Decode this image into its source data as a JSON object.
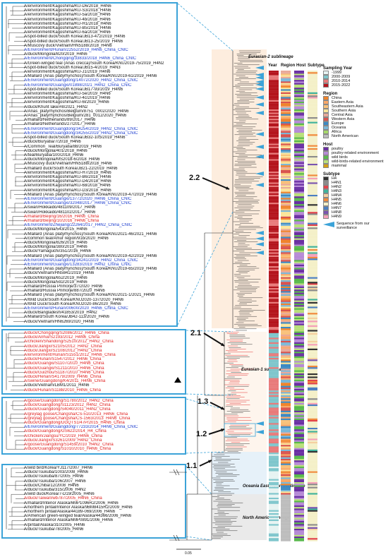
{
  "panels": {
    "p1": [
      {
        "t": "A/environment/Kagoshima/KU-D6/2018_H4N6",
        "c": "k"
      },
      {
        "t": "A/environment/Kagoshima/KU-S3/2018_H4N6",
        "c": "k"
      },
      {
        "t": "A/environment/Kagoshima/KU-5a/2018_H4N6",
        "c": "k"
      },
      {
        "t": "A/environment/Kagoshima/KU-4b/2018_H4N6",
        "c": "k"
      },
      {
        "t": "A/environment/Kagoshima/KU-H1/2018_H4N6",
        "c": "k"
      },
      {
        "t": "A/environment/Kagoshima/KU-B5/2018_H4N6",
        "c": "k"
      },
      {
        "t": "A/environment/Kagoshima/KU-6a/2018_H4N6",
        "c": "k"
      },
      {
        "t": "A/spot-billed duck/South Korea/JB13-472/2019_H4N6",
        "c": "k"
      },
      {
        "t": "A/spot-billed duck/South Korea/JB13-25/2019_H4N6",
        "c": "k"
      },
      {
        "t": "A/Muscovy duck/Vietnam/HN5188/2018_H4N6",
        "c": "k"
      },
      {
        "t": "A/Environment/Hunan/22552/2019_H4N6_China_CNIC",
        "c": "b"
      },
      {
        "t": "A/duck/Mongolia/820/2019_H4N6",
        "c": "k"
      },
      {
        "t": "A/Environment/Chongqing/33833/2018_H4N6_China_CNIC",
        "c": "b"
      },
      {
        "t": "A/Green-winged teal (Anas crecca)/South Korea/KNU2019-75/2019_H4N2",
        "c": "k"
      },
      {
        "t": "A/spot-billed duck/South Korea/JB15-4/2019_H4N3",
        "c": "k"
      },
      {
        "t": "A/environment/Kagoshima/KU-J1/2019_H4N6",
        "c": "k"
      },
      {
        "t": "A/Mallard (Anas platyrhynchos)/South Korea/KNU2019-61/2019_H4N6",
        "c": "k"
      },
      {
        "t": "A/Environment/Guangdong/14072/2020_H4N2_China_CNIC",
        "c": "b"
      },
      {
        "t": "A/Environment/Guangxi/01898/2021_H4N2_China_CNIC",
        "c": "b"
      },
      {
        "t": "A/spot-billed duck/South Korea/JB17-93/2019_H4N6",
        "c": "k"
      },
      {
        "t": "A/environment/Kagoshima/KU-5e/2019_H4N6",
        "c": "k"
      },
      {
        "t": "A/environment/Kagoshima/KU-4c/2019_H4N6",
        "c": "k"
      },
      {
        "t": "A/environment/Kagoshima/KU-6l/2020_H4N6",
        "c": "k"
      },
      {
        "t": "A/duck/Khunt lake/#8/2021_H4N2",
        "c": "k"
      },
      {
        "t": "A/Anas_platyrhynchos/Belgium/8751_0002/2020_H4N6",
        "c": "k"
      },
      {
        "t": "A/Anas_platyrhynchos/Belgium/281_0012/2020_H4N6",
        "c": "k"
      },
      {
        "t": "A/mallard/Netherlands/89/2017_H4N6",
        "c": "k"
      },
      {
        "t": "A/mallard/Netherlands/27/2017_H4N6",
        "c": "k"
      },
      {
        "t": "A/Environment/Guangdong/34254/2019_H4N2_China_CNIC",
        "c": "b"
      },
      {
        "t": "A/Environment/Guangdong/34255/2019_H4N2_China_CNIC",
        "c": "b"
      },
      {
        "t": "A/spot-billed duck/South Korea/JB32-105/2019_H4N6",
        "c": "k"
      },
      {
        "t": "A/duck/Buryatia/7/2018_H4N6",
        "c": "k"
      },
      {
        "t": "A/Common_Teal/Buryatia/88/2019_H4N6",
        "c": "k"
      },
      {
        "t": "A/duck/Mongolia/401/2018_H4N6",
        "c": "k"
      },
      {
        "t": "A/teal/Buryatia/100/2018_H4N6",
        "c": "k"
      },
      {
        "t": "A/duck/Mongolia/MS2018-6/2018_H4N6",
        "c": "k"
      },
      {
        "t": "A/Muscovy duck/Vietnam/HN5188/2018_H4N6",
        "c": "k"
      },
      {
        "t": "A/mallard duck/South Korea/JB21-22/2019_H4N6",
        "c": "k"
      },
      {
        "t": "A/environment/Kagoshima/KU-H7/2019_H4N6",
        "c": "k"
      },
      {
        "t": "A/environment/Kagoshima/KU-B6/2018_H4N6",
        "c": "k"
      },
      {
        "t": "A/environment/Kagoshima/KU-D4/2018_H4N6",
        "c": "k"
      },
      {
        "t": "A/environment/Kagoshima/KU-68/2018_H4N6",
        "c": "k"
      },
      {
        "t": "A/environment/Kagoshima/KU-D3/2018_H4N6",
        "c": "k"
      },
      {
        "t": "A/Mallard (Anas platyrhynchos)/South Korea/KNU2019-47/2019_H4N6",
        "c": "k"
      },
      {
        "t": "A/Environment/Guangxi/13772/2020_H4N6_China_CNIC",
        "c": "b"
      },
      {
        "t": "A/Environment/Guangxi/32048/2017_H4N6_China_CNIC",
        "c": "b"
      },
      {
        "t": "A/swan/Hokkaido/481109/2017_H4N6",
        "c": "k"
      },
      {
        "t": "A/swan/Hokkaido/481102/2017_H4N6",
        "c": "k"
      },
      {
        "t": "A/mallard/Beijing/16/2016_H4N6_China",
        "c": "r"
      },
      {
        "t": "A/mallard/Beijing/10/2016_H4N6_China",
        "c": "r"
      },
      {
        "t": "A/Environment/Zhejiang/22264/2017_H4N2_China_CNIC",
        "c": "b"
      },
      {
        "t": "A/duck/Mongolia/543/2015_H4N6",
        "c": "k"
      },
      {
        "t": "A/Mallard (Anas platyrhynchos)/South Korea/KNU2021-46/2021_H4N6",
        "c": "k"
      },
      {
        "t": "A/common teal/Amur region/91b/2020_H4N6",
        "c": "k"
      },
      {
        "t": "A/duck/Mongolia/826/2019_H4N6",
        "c": "k"
      },
      {
        "t": "A/duck/Mongolia/380/2019_H4N6",
        "c": "k"
      },
      {
        "t": "A/duck/Yamaguchi/351/2016_H4N6",
        "c": "k"
      },
      {
        "t": "A/Mallard (Anas platyrhynchos)/South Korea/KNU2019-42/2019_H4N6",
        "c": "k"
      },
      {
        "t": "A/Environment/Guangdong/34241/2019_H4N2_China_CNIC",
        "c": "b"
      },
      {
        "t": "A/Environment/Guangxi/13283/2019_H4N2_China_CNIC",
        "c": "b"
      },
      {
        "t": "A/Mallard (Anas platyrhynchos)/South Korea/KNU2019-65/2019_H4N6",
        "c": "k"
      },
      {
        "t": "A/duck/Vietnam/HN5841/2019_H4N6",
        "c": "k"
      },
      {
        "t": "A/duck/Mongolia/652/2019_H4N6",
        "c": "k"
      },
      {
        "t": "A/duck/Mongolia/592/2019_H4N6",
        "c": "k"
      },
      {
        "t": "A/mallard/Russia Primorje/37/2020_H4N6",
        "c": "k"
      },
      {
        "t": "A/mallard/Russia Primorje/887/2020_H4N6",
        "c": "k"
      },
      {
        "t": "A/Mallard (Anas platyrhynchos)/South Korea/KNU2021-1/2021_H4N6",
        "c": "k"
      },
      {
        "t": "A/Wild Duck/South Korea/KNU2020-137/2020_H4N6",
        "c": "k"
      },
      {
        "t": "A/Wild Duck/South Korea/KNU2020-86/2020_H4N6",
        "c": "k"
      },
      {
        "t": "A/Environment/Hunan/00600/2020_H4N6_China_CNIC",
        "c": "b"
      },
      {
        "t": "A/duck/Bangladesh/41853/2019_H4N2",
        "c": "k"
      },
      {
        "t": "A/Mallard/South Korea/JB42-113/2020_H4N6",
        "c": "k"
      },
      {
        "t": "A/duck/Vietnam/HN6269/2020_H4N6",
        "c": "k"
      }
    ],
    "p2": [
      {
        "t": "A/duck/Chongqing/S2086/2012_H4N6_China",
        "c": "r"
      },
      {
        "t": "A/duck/Anhui/S2193/2012_H4N6_China",
        "c": "r"
      },
      {
        "t": "A/chicken/Shandong/S2510/2012_H4N2_China",
        "c": "r"
      },
      {
        "t": "A/duck/Jiangxi/S2105/2012_H4N2_China",
        "c": "r"
      },
      {
        "t": "A/duck/Jiangxi/S2108/2012_H4N2_China",
        "c": "r"
      },
      {
        "t": "A/environment/Hunan/S1551/2012_H4N6_China",
        "c": "r"
      },
      {
        "t": "A/duck/Hunan/S1547/2012_H4N6_China",
        "c": "r"
      },
      {
        "t": "A/duck/Guangxi/S1107/2010_H4N6_China",
        "c": "r"
      },
      {
        "t": "A/duck/Guangxi/S1211/2010_H4N6_China",
        "c": "r"
      },
      {
        "t": "A/duck/Guizhou/S1187/2010_H4N6_China",
        "c": "r"
      },
      {
        "t": "A/duck/Henan/S4179/2009_H4N6_China",
        "c": "r"
      },
      {
        "t": "A/swine/Guangdong/K4/2011_H4N6_China",
        "c": "r"
      },
      {
        "t": "A/duck/Vietnam/LBM1/2011_H4N6",
        "c": "k"
      },
      {
        "t": "A/duck/Hunan/S1188/2010_H4N6_China",
        "c": "r"
      }
    ],
    "p3": [
      {
        "t": "A/goose/Guangdong/S1780/2012_H4N2_China",
        "c": "r"
      },
      {
        "t": "A/duck/Guangdong/S1123/2012_H4N2_China",
        "c": "r"
      },
      {
        "t": "A/duck/Guangdong/S4040/2011_H4N2_China",
        "c": "r"
      },
      {
        "t": "A/greylag goose/Changsha/CS-510/2013_H4N6_China",
        "c": "r"
      },
      {
        "t": "A/greylag goose/Changsha/CS-1563/2013_H4N6_China",
        "c": "r"
      },
      {
        "t": "A/duck/Guangdong/DGQTS1/47P/2015_H4N6_China",
        "c": "r"
      },
      {
        "t": "A/Environment/Guangdong/77233/2014_H4N6_China_CNIC",
        "c": "b"
      },
      {
        "t": "A/duck/Guangdong/GS622/2014_H4_China",
        "c": "r"
      },
      {
        "t": "A/chicken/Jiangsu/YC/2019_H4N6_China",
        "c": "r"
      },
      {
        "t": "A/duck/Jiangxi/S3261/2009_H4N2_China",
        "c": "r"
      },
      {
        "t": "A/goose/Guangdong/S1459/2010_H4N2_China",
        "c": "r"
      },
      {
        "t": "A/duck/Guangdong/S1010/2010_H4N6_China",
        "c": "r"
      }
    ],
    "p4": [
      {
        "t": "A/wild bird/Korea/YJ117/2007_H4N6",
        "c": "k"
      },
      {
        "t": "A/duck/Tsukuba/1003/2008_H4N6",
        "c": "k"
      },
      {
        "t": "A/duck/Tsukuba/87/2005_H4N6",
        "c": "k"
      },
      {
        "t": "A/duck/Tsukuba/106/2007_H4N6",
        "c": "k"
      },
      {
        "t": "A/duck/Chiba/12/2008_H4N6",
        "c": "k"
      },
      {
        "t": "A/duck/Tsukuba/315/2006_H4N2",
        "c": "k"
      },
      {
        "t": "A/wild duck/Korea/7-D19/2005_H4N6",
        "c": "k"
      },
      {
        "t": "A/duck/Taiwan/wb787/2005_H4N6_China",
        "c": "r"
      },
      {
        "t": "A/mallard/Interior Alaska/6MP1096R2/2006_H4N6",
        "c": "k"
      },
      {
        "t": "A/northern pintail/Interior Alaska/9BM8415R2/2009_H4N6",
        "c": "k"
      },
      {
        "t": "A/northern pintail/Alaska/44189-069/2006_H4N6",
        "c": "k"
      },
      {
        "t": "A/American green-winged teal/Alaska/44366/2006_H4N6",
        "c": "k"
      },
      {
        "t": "A/mallard/Interior Alaska/6MP0891/2006_H4N6",
        "c": "k"
      },
      {
        "t": "A/pintail/Alaska/310/2005_H4N6",
        "c": "k"
      },
      {
        "t": "A/duck/Tsukuba/78/2005_H4N6",
        "c": "k"
      }
    ]
  },
  "tree_labels": {
    "eurasian2": "Eurasian-2 sublineage",
    "eurasian1": "Eurasian-1 sublineage",
    "oceania": "Oceania East Asian sublineage",
    "north_american": "North American lineage",
    "c22": "2.2",
    "c21": "2.1",
    "c13": "1.3",
    "c12": "1.2",
    "c11": "1.1",
    "scale": "0.05"
  },
  "columns": {
    "year": "Year",
    "region": "Region",
    "host": "Host",
    "subtype": "Subtype"
  },
  "legend": {
    "sampling_title": "Sampling Year",
    "sampling": [
      {
        "label": "-1999",
        "color": "#e7f3f2"
      },
      {
        "label": "2000-2009",
        "color": "#7fc6cc"
      },
      {
        "label": "2010-2014",
        "color": "#e87a7a"
      },
      {
        "label": "2015-2022",
        "color": "#b4151d"
      }
    ],
    "region_title": "Region",
    "region": [
      {
        "label": "China",
        "color": "#f0842c"
      },
      {
        "label": "Eastern Asia",
        "color": "#f8a768"
      },
      {
        "label": "Southeastern Asia",
        "color": "#f8c17a"
      },
      {
        "label": "Southern Asia",
        "color": "#fbe59a"
      },
      {
        "label": "Central Asia",
        "color": "#e9a999"
      },
      {
        "label": "Western Asia",
        "color": "#d9534f"
      },
      {
        "label": "Europe",
        "color": "#3d8ac4"
      },
      {
        "label": "Oceania",
        "color": "#7bb8d9"
      },
      {
        "label": "Africa",
        "color": "#a6d96a"
      },
      {
        "label": "North American",
        "color": "#bdbdbd"
      }
    ],
    "host_title": "Host",
    "host": [
      {
        "label": "poultry",
        "color": "#6a2fa3"
      },
      {
        "label": "poultry-related environment",
        "color": "#b68ad6"
      },
      {
        "label": "wild birds",
        "color": "#58b94b"
      },
      {
        "label": "wild-birds-related environment",
        "color": "#b9e07a"
      },
      {
        "label": "mammal",
        "color": "#d4a017"
      }
    ],
    "subtype_title": "Subtype",
    "subtype": [
      {
        "label": "H4",
        "color": "#333333"
      },
      {
        "label": "H4N1",
        "color": "#8c8c8c"
      },
      {
        "label": "H4N2",
        "color": "#e2434b"
      },
      {
        "label": "H4N3",
        "color": "#3fb39b"
      },
      {
        "label": "H4N4",
        "color": "#f5d0a0"
      },
      {
        "label": "H4N5",
        "color": "#f08a3c"
      },
      {
        "label": "H4N6",
        "color": "#f4f0c8"
      },
      {
        "label": "H4N7",
        "color": "#4b7fc2"
      },
      {
        "label": "H4N8",
        "color": "#7a55b0"
      },
      {
        "label": "H4N9",
        "color": "#f5a0b8"
      }
    ],
    "sequence_note": "Sequence from our surveillance"
  },
  "colors": {
    "accent": "#3ca3d8",
    "blue_text": "#1f3fcf",
    "red_text": "#e0201f"
  }
}
